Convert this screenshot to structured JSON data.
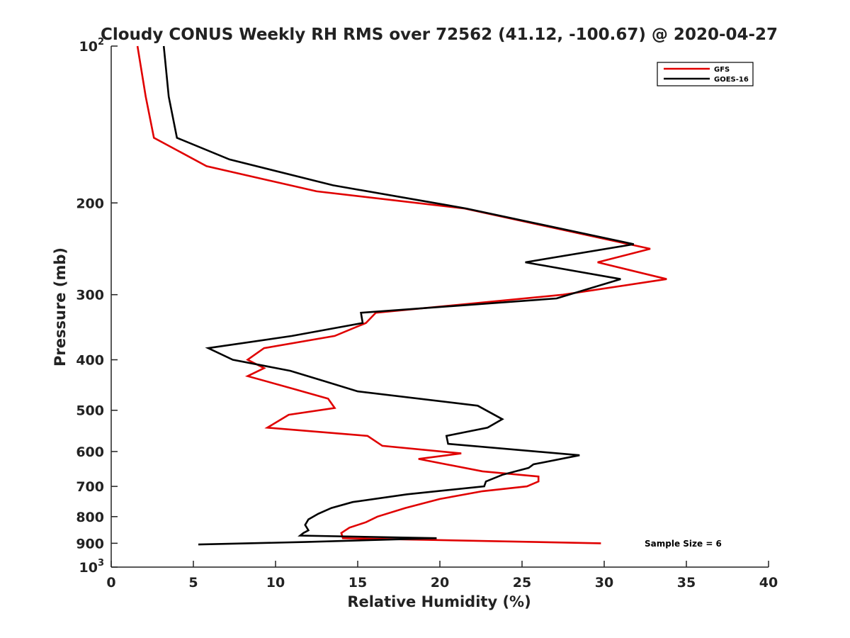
{
  "chart_data": {
    "type": "line",
    "title": "Cloudy CONUS Weekly RH RMS over 72562 (41.12, -100.67) @ 2020-04-27",
    "xlabel": "Relative Humidity (%)",
    "ylabel": "Pressure (mb)",
    "xlim": [
      0,
      40
    ],
    "ylim": [
      100,
      1000
    ],
    "y_scale": "log",
    "y_reversed": true,
    "x_ticks": [
      0,
      5,
      10,
      15,
      20,
      25,
      30,
      35,
      40
    ],
    "x_tick_labels": [
      "0",
      "5",
      "10",
      "15",
      "20",
      "25",
      "30",
      "35",
      "40"
    ],
    "y_ticks": [
      100,
      200,
      300,
      400,
      500,
      600,
      700,
      800,
      900,
      1000
    ],
    "y_tick_labels": [
      {
        "base": "10",
        "exp": "2"
      },
      {
        "base": "200",
        "exp": ""
      },
      {
        "base": "300",
        "exp": ""
      },
      {
        "base": "400",
        "exp": ""
      },
      {
        "base": "500",
        "exp": ""
      },
      {
        "base": "600",
        "exp": ""
      },
      {
        "base": "700",
        "exp": ""
      },
      {
        "base": "800",
        "exp": ""
      },
      {
        "base": "900",
        "exp": ""
      },
      {
        "base": "10",
        "exp": "3"
      }
    ],
    "grid": false,
    "legend_position": "top-right",
    "annotation": "Sample Size = 6",
    "series": [
      {
        "name": "GFS",
        "color": "#e00000",
        "points": [
          [
            1.6,
            100
          ],
          [
            2.1,
            125
          ],
          [
            2.6,
            150
          ],
          [
            5.8,
            170
          ],
          [
            12.5,
            190
          ],
          [
            21.5,
            205
          ],
          [
            32.8,
            245
          ],
          [
            29.6,
            260
          ],
          [
            33.8,
            280
          ],
          [
            27.5,
            300
          ],
          [
            16.1,
            325
          ],
          [
            15.5,
            340
          ],
          [
            13.6,
            360
          ],
          [
            9.3,
            380
          ],
          [
            8.3,
            400
          ],
          [
            9.3,
            415
          ],
          [
            8.3,
            430
          ],
          [
            11.1,
            455
          ],
          [
            13.2,
            475
          ],
          [
            13.6,
            495
          ],
          [
            10.8,
            510
          ],
          [
            9.5,
            540
          ],
          [
            15.6,
            560
          ],
          [
            16.5,
            585
          ],
          [
            21.3,
            605
          ],
          [
            18.7,
            620
          ],
          [
            22.6,
            655
          ],
          [
            26.0,
            670
          ],
          [
            26.0,
            685
          ],
          [
            25.3,
            700
          ],
          [
            22.6,
            715
          ],
          [
            20.0,
            740
          ],
          [
            17.9,
            770
          ],
          [
            16.2,
            800
          ],
          [
            15.5,
            820
          ],
          [
            14.5,
            840
          ],
          [
            14.0,
            860
          ],
          [
            14.1,
            880
          ],
          [
            29.8,
            900
          ]
        ]
      },
      {
        "name": "GOES-16",
        "color": "#000000",
        "points": [
          [
            3.2,
            100
          ],
          [
            3.5,
            125
          ],
          [
            4.0,
            150
          ],
          [
            7.2,
            165
          ],
          [
            13.5,
            185
          ],
          [
            21.6,
            205
          ],
          [
            31.8,
            240
          ],
          [
            25.2,
            260
          ],
          [
            31.0,
            280
          ],
          [
            27.1,
            305
          ],
          [
            15.2,
            325
          ],
          [
            15.3,
            340
          ],
          [
            11.0,
            360
          ],
          [
            5.9,
            380
          ],
          [
            7.4,
            400
          ],
          [
            10.9,
            420
          ],
          [
            13.0,
            440
          ],
          [
            15.0,
            460
          ],
          [
            22.3,
            490
          ],
          [
            23.8,
            520
          ],
          [
            22.9,
            540
          ],
          [
            20.4,
            560
          ],
          [
            20.5,
            580
          ],
          [
            28.5,
            610
          ],
          [
            25.7,
            635
          ],
          [
            25.4,
            645
          ],
          [
            23.8,
            665
          ],
          [
            22.8,
            685
          ],
          [
            22.7,
            700
          ],
          [
            18.0,
            725
          ],
          [
            14.7,
            750
          ],
          [
            13.4,
            770
          ],
          [
            12.6,
            790
          ],
          [
            12.0,
            810
          ],
          [
            11.8,
            830
          ],
          [
            12.0,
            850
          ],
          [
            11.7,
            860
          ],
          [
            11.5,
            870
          ],
          [
            19.8,
            880
          ],
          [
            11.8,
            895
          ],
          [
            5.3,
            905
          ]
        ]
      }
    ]
  }
}
